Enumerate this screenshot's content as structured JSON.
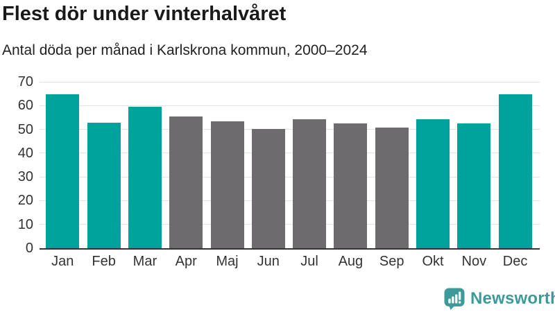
{
  "header": {
    "title": "Flest dör under vinterhalvåret",
    "subtitle": "Antal döda per månad i Karlskrona kommun, 2000–2024"
  },
  "chart_data": {
    "type": "bar",
    "title": "Flest dör under vinterhalvåret",
    "subtitle": "Antal döda per månad i Karlskrona kommun, 2000–2024",
    "categories": [
      "Jan",
      "Feb",
      "Mar",
      "Apr",
      "Maj",
      "Jun",
      "Jul",
      "Aug",
      "Sep",
      "Okt",
      "Nov",
      "Dec"
    ],
    "values": [
      64.8,
      52.9,
      59.4,
      55.5,
      53.4,
      50.2,
      54.3,
      52.6,
      50.8,
      54.3,
      52.6,
      64.9
    ],
    "highlighted_categories": [
      "Jan",
      "Feb",
      "Mar",
      "Okt",
      "Nov",
      "Dec"
    ],
    "highlight_color": "#00a39c",
    "muted_color": "#6e6b6f",
    "xlabel": "",
    "ylabel": "",
    "ylim": [
      0,
      70
    ],
    "yticks": [
      0,
      10,
      20,
      30,
      40,
      50,
      60,
      70
    ],
    "grid": true,
    "legend": false,
    "gridline_color": "#e2e2e2",
    "axis_line_color": "#333333"
  },
  "footer": {
    "brand": "Newsworthy",
    "brand_color": "#3d9a99",
    "logo_icon": "speech-bubble-bar-chart-icon"
  }
}
